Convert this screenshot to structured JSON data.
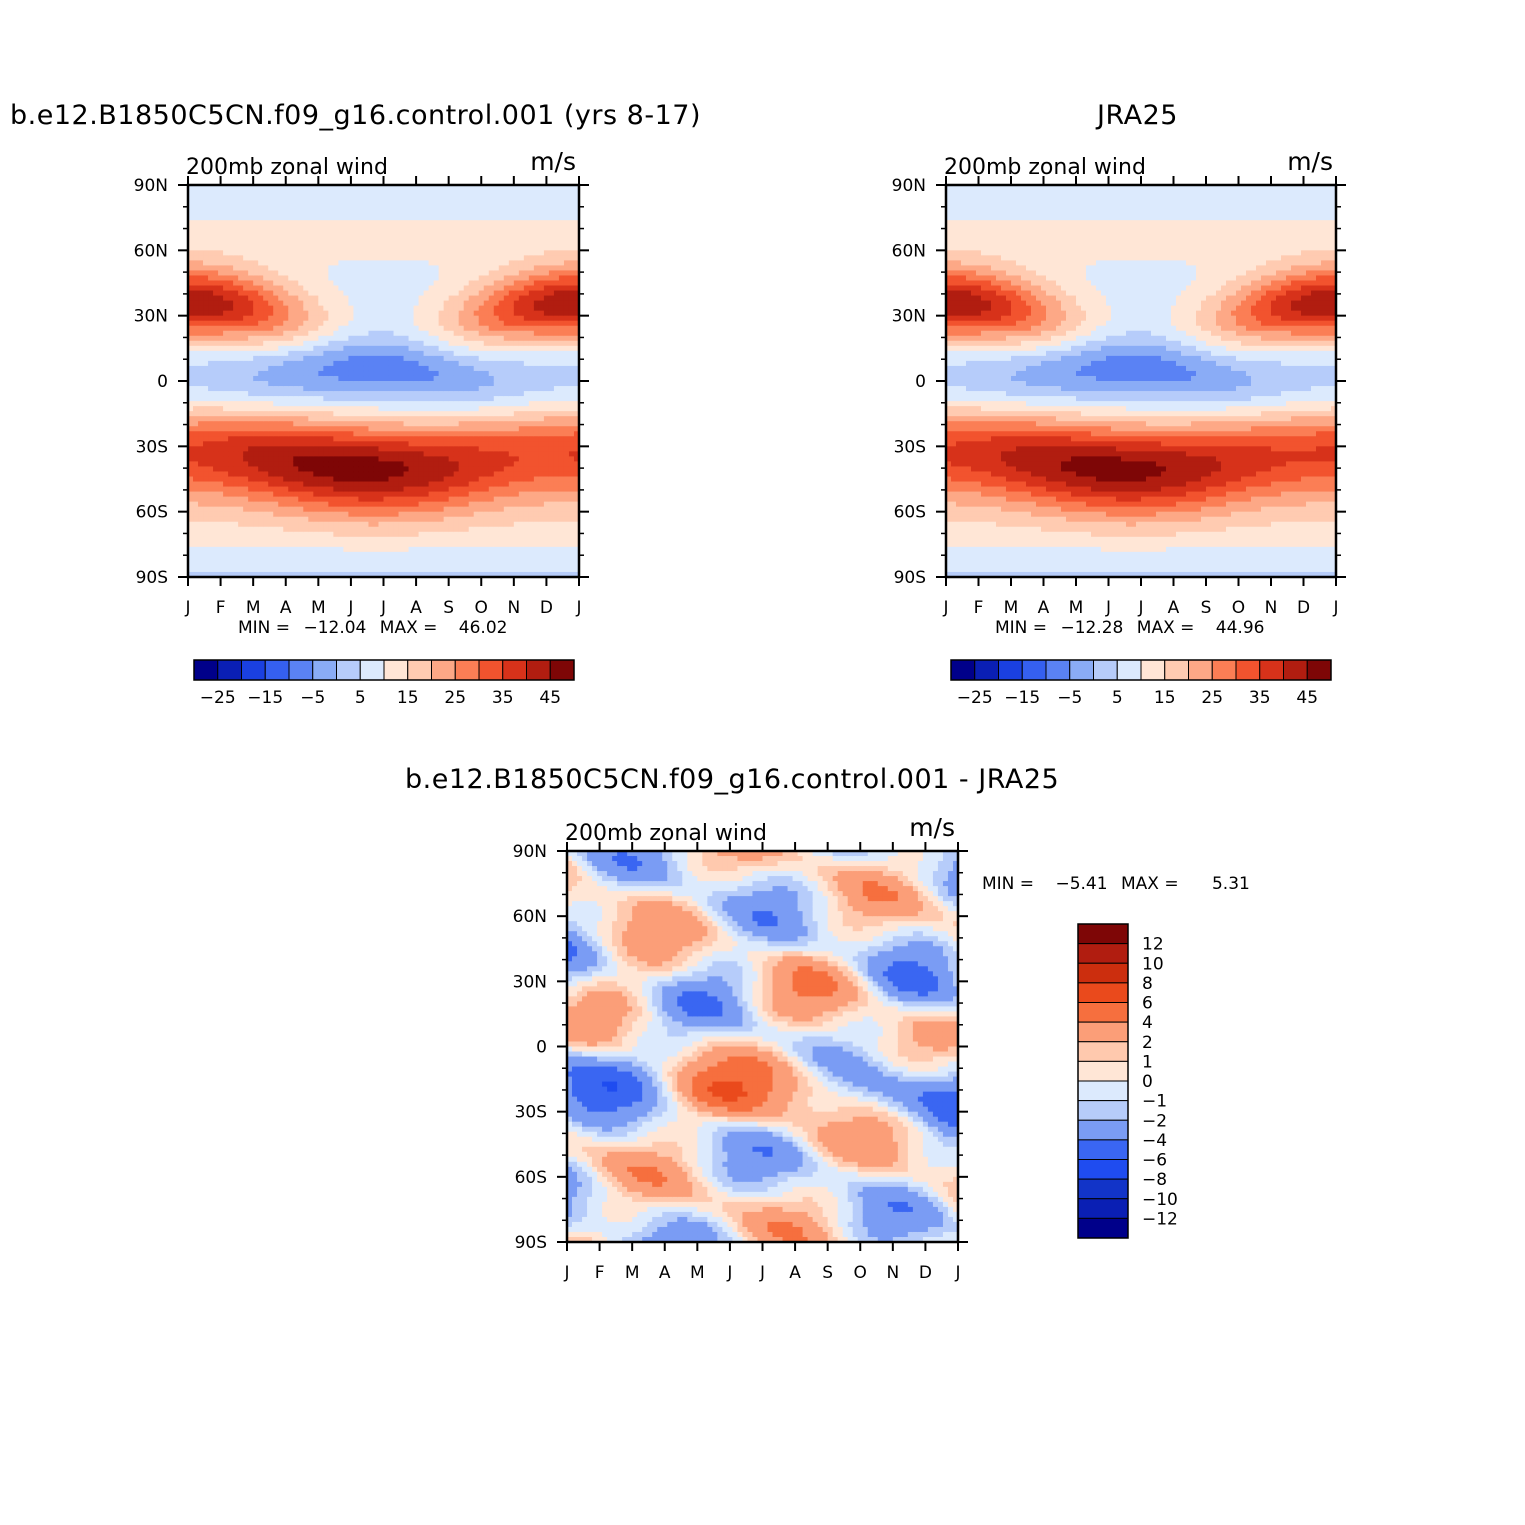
{
  "figure": {
    "panel_titles": [
      "b.e12.B1850C5CN.f09_g16.control.001 (yrs 8-17)",
      "JRA25",
      "b.e12.B1850C5CN.f09_g16.control.001 - JRA25"
    ],
    "minmax": [
      {
        "label_min": "MIN =",
        "min": "-12.04",
        "label_max": "MAX =",
        "max": "46.02"
      },
      {
        "label_min": "MIN =",
        "min": "-12.28",
        "label_max": "MAX =",
        "max": "44.96"
      },
      {
        "label_min": "MIN =",
        "min": "-5.41",
        "label_max": "MAX =",
        "max": "5.31"
      }
    ]
  },
  "chart_data": [
    {
      "type": "heatmap",
      "title": "b.e12.B1850C5CN.f09_g16.control.001 (yrs 8-17)",
      "left_label": "200mb zonal wind",
      "right_label": "m/s",
      "x_ticks": [
        "J",
        "F",
        "M",
        "A",
        "M",
        "J",
        "J",
        "A",
        "S",
        "O",
        "N",
        "D",
        "J"
      ],
      "y_ticks": [
        "90N",
        "60N",
        "30N",
        "0",
        "30S",
        "60S",
        "90S"
      ],
      "y_values": [
        90,
        60,
        30,
        0,
        -30,
        -60,
        -90
      ],
      "xlim": [
        0,
        12
      ],
      "ylim": [
        -90,
        90
      ],
      "field": "model",
      "min": -12.04,
      "max": 46.02,
      "colorbar": {
        "orientation": "horizontal",
        "levels": [
          -30,
          -25,
          -20,
          -15,
          -10,
          -5,
          0,
          5,
          10,
          15,
          20,
          25,
          30,
          35,
          40,
          45
        ],
        "labels": [
          "-25",
          "-15",
          "-5",
          "5",
          "15",
          "25",
          "35",
          "45"
        ],
        "colors": [
          "#00008a",
          "#0a1fb4",
          "#1a40e0",
          "#3560f0",
          "#5a82f4",
          "#8aacf6",
          "#b6ccfa",
          "#dceafd",
          "#ffe6d6",
          "#ffcbb1",
          "#fda886",
          "#fb7e55",
          "#f2532e",
          "#d7321a",
          "#b11d10",
          "#7e0606"
        ]
      }
    },
    {
      "type": "heatmap",
      "title": "JRA25",
      "left_label": "200mb zonal wind",
      "right_label": "m/s",
      "x_ticks": [
        "J",
        "F",
        "M",
        "A",
        "M",
        "J",
        "J",
        "A",
        "S",
        "O",
        "N",
        "D",
        "J"
      ],
      "y_ticks": [
        "90N",
        "60N",
        "30N",
        "0",
        "30S",
        "60S",
        "90S"
      ],
      "y_values": [
        90,
        60,
        30,
        0,
        -30,
        -60,
        -90
      ],
      "xlim": [
        0,
        12
      ],
      "ylim": [
        -90,
        90
      ],
      "field": "obs",
      "min": -12.28,
      "max": 44.96,
      "colorbar": {
        "orientation": "horizontal",
        "levels": [
          -30,
          -25,
          -20,
          -15,
          -10,
          -5,
          0,
          5,
          10,
          15,
          20,
          25,
          30,
          35,
          40,
          45
        ],
        "labels": [
          "-25",
          "-15",
          "-5",
          "5",
          "15",
          "25",
          "35",
          "45"
        ],
        "colors": [
          "#00008a",
          "#0a1fb4",
          "#1a40e0",
          "#3560f0",
          "#5a82f4",
          "#8aacf6",
          "#b6ccfa",
          "#dceafd",
          "#ffe6d6",
          "#ffcbb1",
          "#fda886",
          "#fb7e55",
          "#f2532e",
          "#d7321a",
          "#b11d10",
          "#7e0606"
        ]
      }
    },
    {
      "type": "heatmap",
      "title": "b.e12.B1850C5CN.f09_g16.control.001 - JRA25",
      "left_label": "200mb zonal wind",
      "right_label": "m/s",
      "x_ticks": [
        "J",
        "F",
        "M",
        "A",
        "M",
        "J",
        "J",
        "A",
        "S",
        "O",
        "N",
        "D",
        "J"
      ],
      "y_ticks": [
        "90N",
        "60N",
        "30N",
        "0",
        "30S",
        "60S",
        "90S"
      ],
      "y_values": [
        90,
        60,
        30,
        0,
        -30,
        -60,
        -90
      ],
      "xlim": [
        0,
        12
      ],
      "ylim": [
        -90,
        90
      ],
      "field": "diff",
      "min": -5.41,
      "max": 5.31,
      "colorbar": {
        "orientation": "vertical",
        "levels": [
          -12,
          -10,
          -8,
          -6,
          -4,
          -2,
          -1,
          0,
          1,
          2,
          4,
          6,
          8,
          10,
          12
        ],
        "labels": [
          "12",
          "10",
          "8",
          "6",
          "4",
          "2",
          "1",
          "0",
          "-1",
          "-2",
          "-4",
          "-6",
          "-8",
          "-10",
          "-12"
        ],
        "colors": [
          "#00008a",
          "#0a1fb4",
          "#1234c8",
          "#1f4cf0",
          "#3a66f2",
          "#7a9cf4",
          "#b6ccfa",
          "#dceafd",
          "#ffe6d6",
          "#ffc9ae",
          "#fb9e78",
          "#f66f3e",
          "#ea4a1c",
          "#cc2e0e",
          "#b11d10",
          "#7e0606"
        ]
      }
    }
  ]
}
